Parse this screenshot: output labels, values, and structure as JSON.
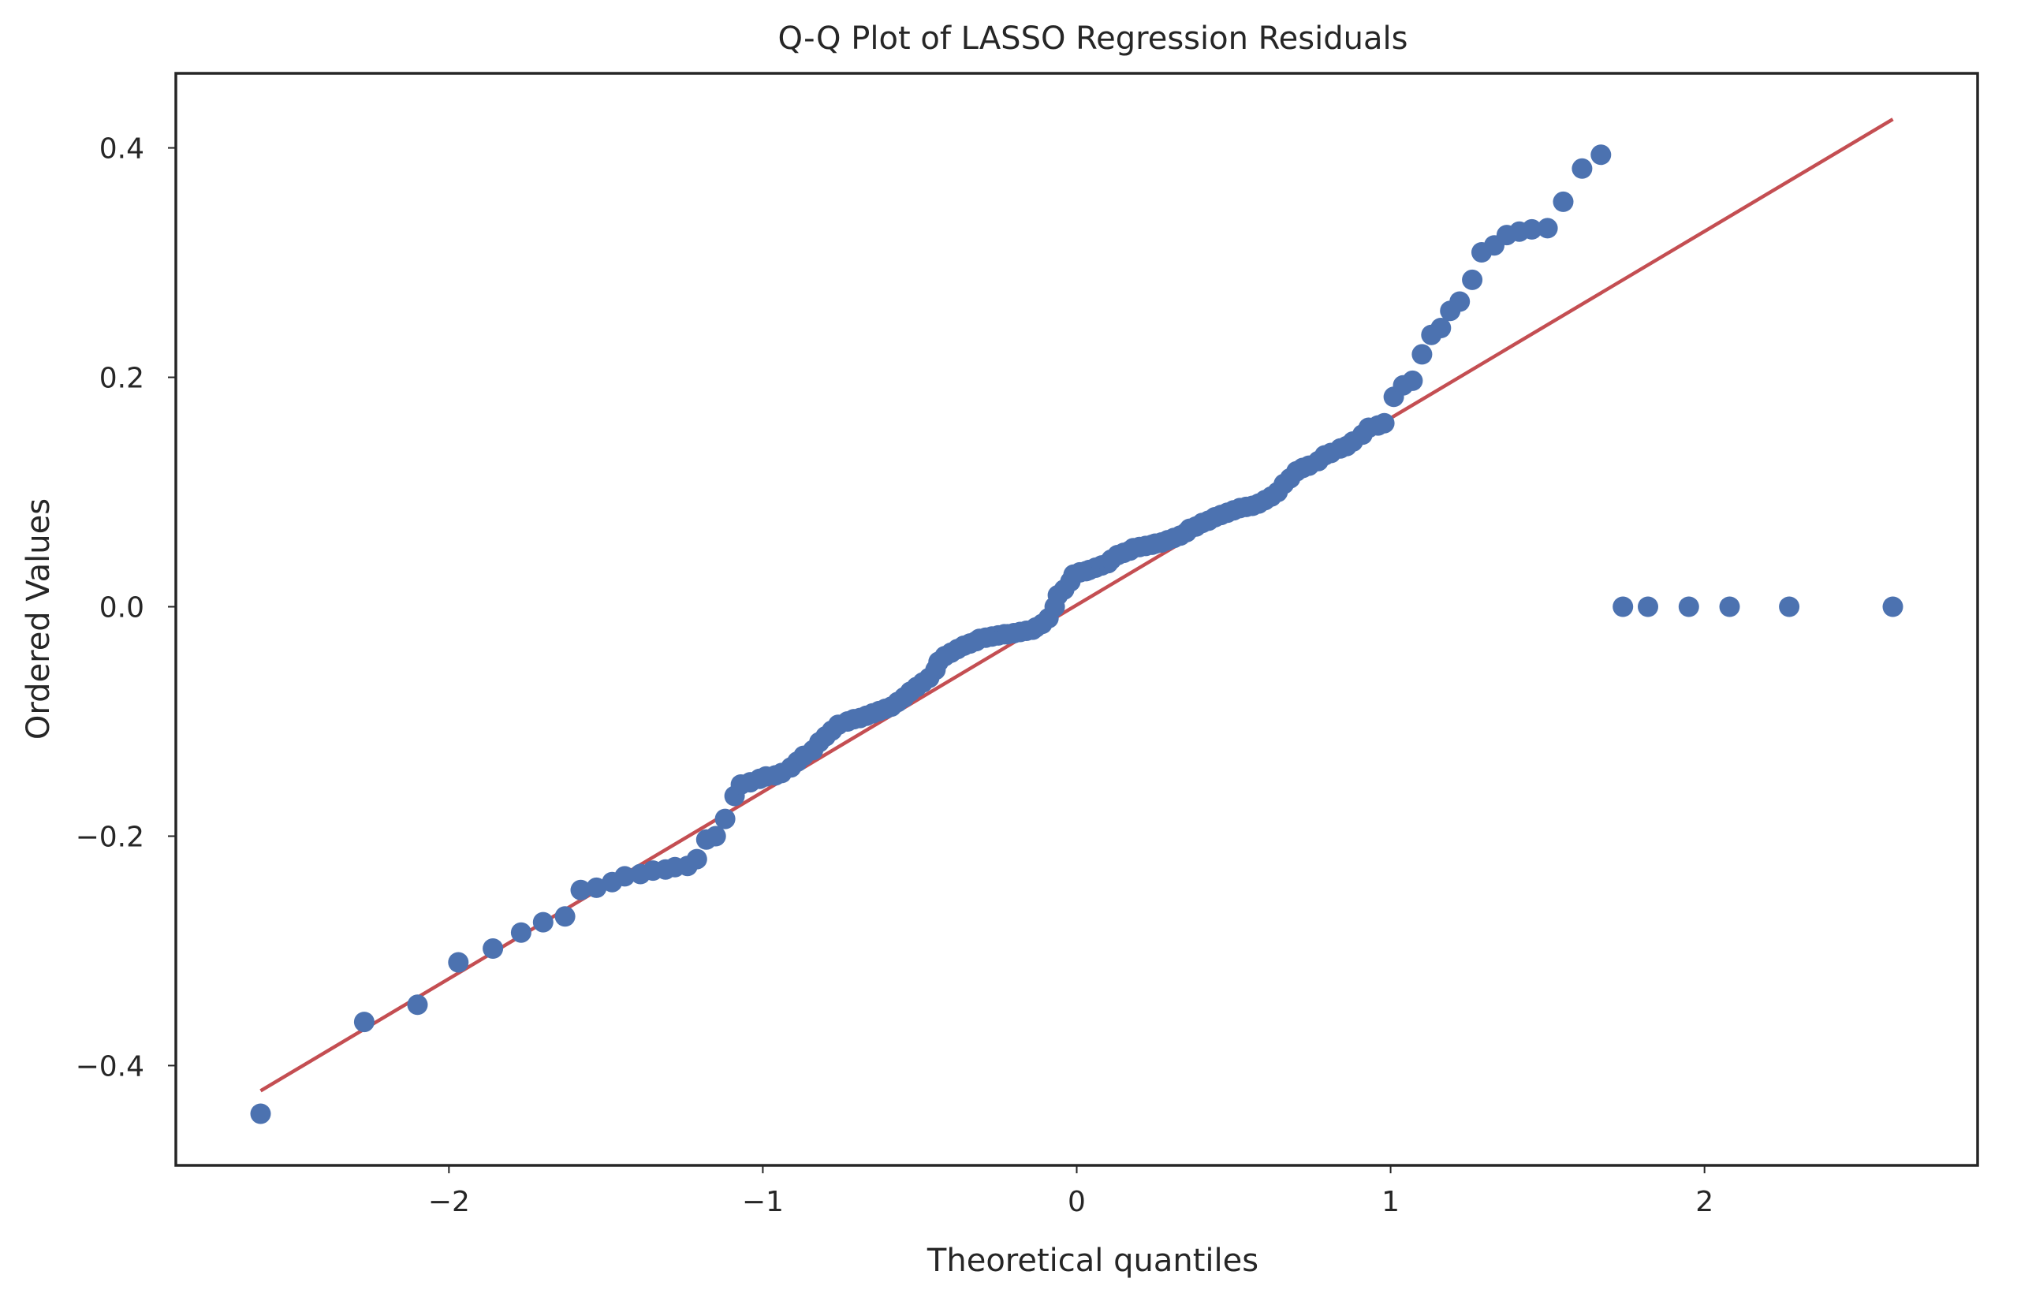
{
  "chart_data": {
    "type": "scatter",
    "title": "Q-Q Plot of LASSO Regression Residuals",
    "xlabel": "Theoretical quantiles",
    "ylabel": "Ordered Values",
    "xlim": [
      -2.87,
      2.87
    ],
    "ylim": [
      -0.487,
      0.465
    ],
    "xticks": [
      -2,
      -1,
      0,
      1,
      2
    ],
    "xtick_labels": [
      "−2",
      "−1",
      "0",
      "1",
      "2"
    ],
    "yticks": [
      -0.4,
      -0.2,
      0.0,
      0.2,
      0.4
    ],
    "ytick_labels": [
      "−0.4",
      "−0.2",
      "0.0",
      "0.2",
      "0.4"
    ],
    "grid": false,
    "legend": "none",
    "colors": {
      "points": "#4C72B0",
      "fit_line": "#C44E52",
      "frame": "#262626"
    },
    "fit_line": {
      "x": [
        -2.6,
        2.6
      ],
      "y": [
        -0.422,
        0.425
      ]
    },
    "series": [
      {
        "x": [
          -2.6,
          -2.27,
          -2.1,
          -1.97,
          -1.86,
          -1.77,
          -1.7,
          -1.63,
          -1.58,
          -1.53,
          -1.48,
          -1.44,
          -1.39,
          -1.35,
          -1.31,
          -1.28,
          -1.24,
          -1.21,
          -1.18,
          -1.15,
          -1.12,
          -1.09,
          -1.07,
          -1.04,
          -1.01,
          -0.99,
          -0.96,
          -0.94,
          -0.91,
          -0.89,
          -0.87,
          -0.84,
          -0.82,
          -0.8,
          -0.78,
          -0.76,
          -0.73,
          -0.71,
          -0.69,
          -0.67,
          -0.65,
          -0.63,
          -0.61,
          -0.59,
          -0.57,
          -0.55,
          -0.53,
          -0.51,
          -0.49,
          -0.47,
          -0.45,
          -0.44,
          -0.42,
          -0.4,
          -0.38,
          -0.36,
          -0.34,
          -0.32,
          -0.31,
          -0.29,
          -0.27,
          -0.25,
          -0.23,
          -0.22,
          -0.2,
          -0.18,
          -0.16,
          -0.14,
          -0.13,
          -0.11,
          -0.09,
          -0.07,
          -0.06,
          -0.04,
          -0.02,
          -0.01,
          0.01,
          0.03,
          0.04,
          0.06,
          0.08,
          0.1,
          0.11,
          0.13,
          0.15,
          0.17,
          0.18,
          0.2,
          0.22,
          0.24,
          0.25,
          0.27,
          0.29,
          0.31,
          0.33,
          0.35,
          0.36,
          0.38,
          0.4,
          0.42,
          0.44,
          0.46,
          0.48,
          0.5,
          0.52,
          0.54,
          0.56,
          0.58,
          0.6,
          0.62,
          0.64,
          0.66,
          0.68,
          0.7,
          0.72,
          0.74,
          0.77,
          0.79,
          0.81,
          0.84,
          0.86,
          0.88,
          0.91,
          0.93,
          0.96,
          0.98,
          1.01,
          1.04,
          1.07,
          1.1,
          1.13,
          1.16,
          1.19,
          1.22,
          1.26,
          1.29,
          1.33,
          1.37,
          1.41,
          1.45,
          1.5,
          1.55,
          1.61,
          1.67,
          1.74,
          1.82,
          1.95,
          2.08,
          2.27,
          2.6
        ],
        "y": [
          -0.442,
          -0.362,
          -0.347,
          -0.31,
          -0.298,
          -0.284,
          -0.275,
          -0.27,
          -0.247,
          -0.245,
          -0.24,
          -0.235,
          -0.233,
          -0.23,
          -0.229,
          -0.227,
          -0.226,
          -0.22,
          -0.203,
          -0.2,
          -0.185,
          -0.165,
          -0.155,
          -0.153,
          -0.15,
          -0.148,
          -0.147,
          -0.145,
          -0.14,
          -0.135,
          -0.13,
          -0.125,
          -0.118,
          -0.113,
          -0.108,
          -0.103,
          -0.1,
          -0.098,
          -0.097,
          -0.095,
          -0.093,
          -0.091,
          -0.089,
          -0.087,
          -0.083,
          -0.079,
          -0.074,
          -0.07,
          -0.066,
          -0.062,
          -0.055,
          -0.048,
          -0.043,
          -0.04,
          -0.037,
          -0.034,
          -0.032,
          -0.03,
          -0.028,
          -0.027,
          -0.026,
          -0.025,
          -0.024,
          -0.024,
          -0.023,
          -0.022,
          -0.021,
          -0.02,
          -0.018,
          -0.015,
          -0.01,
          0.0,
          0.01,
          0.015,
          0.022,
          0.028,
          0.03,
          0.031,
          0.032,
          0.034,
          0.036,
          0.038,
          0.041,
          0.045,
          0.047,
          0.049,
          0.051,
          0.052,
          0.053,
          0.054,
          0.055,
          0.056,
          0.058,
          0.06,
          0.062,
          0.065,
          0.068,
          0.07,
          0.073,
          0.075,
          0.078,
          0.08,
          0.082,
          0.084,
          0.086,
          0.087,
          0.088,
          0.09,
          0.093,
          0.096,
          0.1,
          0.107,
          0.112,
          0.118,
          0.121,
          0.123,
          0.127,
          0.132,
          0.134,
          0.138,
          0.14,
          0.144,
          0.15,
          0.156,
          0.158,
          0.16,
          0.183,
          0.193,
          0.197,
          0.22,
          0.237,
          0.243,
          0.258,
          0.266,
          0.285,
          0.309,
          0.315,
          0.324,
          0.327,
          0.329,
          0.33,
          0.353,
          0.382,
          0.394,
          0.0,
          0.0,
          0.0,
          0.0,
          0.0,
          0.0
        ]
      }
    ]
  }
}
